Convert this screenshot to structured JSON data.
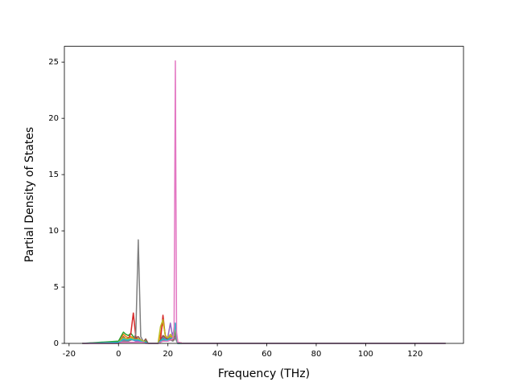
{
  "chart_data": {
    "type": "line",
    "x_label": "Frequency (THz)",
    "y_label": "Partial Density of States",
    "x": [
      -14.6,
      0,
      1,
      2,
      3,
      4,
      5,
      6,
      7,
      8,
      9,
      10,
      11,
      12,
      14,
      16,
      17,
      18,
      19,
      20,
      21,
      22,
      22.5,
      23,
      23.5,
      24,
      26,
      132.3
    ],
    "series": [
      {
        "color": "#1f77b4",
        "values": [
          0,
          0.1,
          0.3,
          0.5,
          0.4,
          0.3,
          0.4,
          0.3,
          0.2,
          0.3,
          0.2,
          0.1,
          0.1,
          0,
          0,
          0,
          0.2,
          0.4,
          0.3,
          0.3,
          0.5,
          0.8,
          1.2,
          1.7,
          0.6,
          0.1,
          0,
          0
        ]
      },
      {
        "color": "#ff7f0e",
        "values": [
          0,
          0.1,
          0.5,
          0.8,
          0.6,
          0.5,
          0.6,
          0.5,
          0.4,
          0.3,
          0.3,
          0.2,
          0.1,
          0,
          0,
          0,
          0.8,
          1.9,
          0.7,
          0.4,
          0.6,
          0.5,
          0.6,
          1.5,
          0.7,
          0.1,
          0,
          0
        ]
      },
      {
        "color": "#2ca02c",
        "values": [
          0,
          0.2,
          0.6,
          1.0,
          0.8,
          0.7,
          0.9,
          0.6,
          0.5,
          0.4,
          0.3,
          0.2,
          0.2,
          0,
          0,
          0,
          0.3,
          0.5,
          0.4,
          0.3,
          0.4,
          0.5,
          0.6,
          0.9,
          0.4,
          0.1,
          0,
          0
        ]
      },
      {
        "color": "#d62728",
        "values": [
          0,
          0.1,
          0.3,
          0.5,
          0.4,
          0.4,
          0.9,
          2.7,
          0.6,
          0.3,
          0.2,
          0.1,
          0.1,
          0,
          0,
          0,
          0.3,
          2.5,
          0.5,
          0.3,
          0.4,
          0.3,
          0.4,
          0.8,
          0.3,
          0,
          0,
          0
        ]
      },
      {
        "color": "#9467bd",
        "values": [
          0,
          0.1,
          0.2,
          0.3,
          0.3,
          0.2,
          0.3,
          0.3,
          0.2,
          0.2,
          0.2,
          0.1,
          0.1,
          0,
          0,
          0,
          0.2,
          0.6,
          0.4,
          0.6,
          1.8,
          0.4,
          0.5,
          1.0,
          0.3,
          0,
          0,
          0
        ]
      },
      {
        "color": "#8c564b",
        "values": [
          0,
          0.1,
          0.3,
          0.6,
          0.4,
          0.5,
          0.4,
          0.3,
          0.5,
          0.6,
          0.3,
          0.1,
          0.4,
          0,
          0,
          0,
          0.3,
          0.7,
          0.5,
          0.4,
          0.8,
          0.5,
          0.6,
          1.2,
          0.4,
          0,
          0,
          0
        ]
      },
      {
        "color": "#7f7f7f",
        "values": [
          0,
          0,
          0.1,
          0.2,
          0.2,
          0.2,
          0.3,
          0.4,
          0.8,
          9.2,
          0.6,
          0.2,
          0.1,
          0,
          0,
          0,
          0.1,
          0.3,
          0.2,
          0.2,
          0.3,
          0.2,
          0.3,
          0.5,
          0.2,
          0,
          0,
          0
        ]
      },
      {
        "color": "#bcbd22",
        "values": [
          0,
          0.1,
          0.3,
          0.5,
          0.4,
          0.4,
          0.5,
          0.4,
          0.3,
          0.4,
          0.3,
          0.2,
          0.1,
          0,
          0,
          0,
          1.5,
          2.1,
          0.6,
          0.5,
          0.8,
          0.5,
          0.7,
          1.6,
          0.5,
          0,
          0,
          0
        ]
      },
      {
        "color": "#17becf",
        "values": [
          0,
          0.1,
          0.2,
          0.4,
          0.3,
          0.3,
          0.4,
          0.3,
          0.3,
          0.3,
          0.2,
          0.1,
          0.1,
          0,
          0,
          0,
          0.2,
          0.4,
          0.3,
          0.3,
          0.5,
          0.4,
          1.0,
          1.8,
          0.6,
          0,
          0,
          0
        ]
      },
      {
        "color": "#e377c2",
        "values": [
          0,
          0,
          0.1,
          0.1,
          0.1,
          0.1,
          0.1,
          0.1,
          0.1,
          0.1,
          0.1,
          0.1,
          0,
          0,
          0,
          0,
          0.1,
          0.2,
          0.2,
          0.2,
          0.3,
          0.4,
          1.5,
          25.1,
          1.0,
          0.1,
          0,
          0
        ]
      }
    ],
    "xlim": [
      -21.9,
      139.6
    ],
    "xticks": [
      -20,
      0,
      20,
      40,
      60,
      80,
      100,
      120
    ],
    "ylim": [
      0,
      26.4
    ],
    "yticks": [
      0,
      5,
      10,
      15,
      20,
      25
    ],
    "grid": false
  }
}
